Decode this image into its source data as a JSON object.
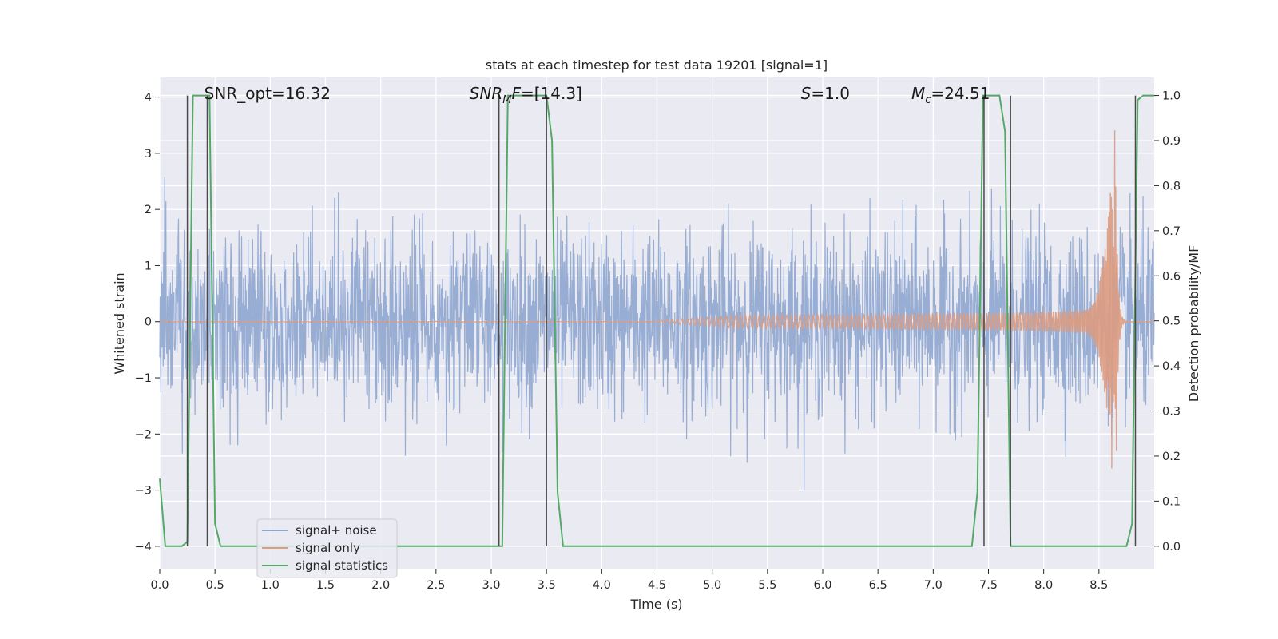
{
  "chart_data": {
    "type": "line",
    "title": "stats at each timestep for test data 19201 [signal=1]",
    "xlabel": "Time (s)",
    "ylabel_left": "Whitened strain",
    "ylabel_right": "Detection probability/MF",
    "xlim": [
      0.0,
      9.0
    ],
    "ylim_left": [
      -4.4,
      4.35
    ],
    "ylim_right": [
      -0.05,
      1.04
    ],
    "x_ticks": [
      "0.0",
      "0.5",
      "1.0",
      "1.5",
      "2.0",
      "2.5",
      "3.0",
      "3.5",
      "4.0",
      "4.5",
      "5.0",
      "5.5",
      "6.0",
      "6.5",
      "7.0",
      "7.5",
      "8.0",
      "8.5"
    ],
    "x_tick_values": [
      0.0,
      0.5,
      1.0,
      1.5,
      2.0,
      2.5,
      3.0,
      3.5,
      4.0,
      4.5,
      5.0,
      5.5,
      6.0,
      6.5,
      7.0,
      7.5,
      8.0,
      8.5
    ],
    "y_left_ticks": [
      "4",
      "3",
      "2",
      "1",
      "0",
      "−1",
      "−2",
      "−3",
      "−4"
    ],
    "y_left_tick_values": [
      4,
      3,
      2,
      1,
      0,
      -1,
      -2,
      -3,
      -4
    ],
    "y_right_ticks": [
      "1.0",
      "0.9",
      "0.8",
      "0.7",
      "0.6",
      "0.5",
      "0.4",
      "0.3",
      "0.2",
      "0.1",
      "0.0"
    ],
    "y_right_tick_values": [
      1.0,
      0.9,
      0.8,
      0.7,
      0.6,
      0.5,
      0.4,
      0.3,
      0.2,
      0.1,
      0.0
    ],
    "grid": true,
    "legend_position": "lower-left",
    "annotations": [
      {
        "html": "SNR_opt=16.32",
        "x": 0.2
      },
      {
        "html": "<tspan font-style='italic'>SNR</tspan><tspan font-style='italic' font-size='13' dy='5'>M</tspan><tspan font-style='italic' dy='-5'>F</tspan>=[14.3]",
        "x": 2.6
      },
      {
        "html": "<tspan font-style='italic'>S</tspan>=1.0",
        "x": 5.6
      },
      {
        "html": "<tspan font-style='italic'>M</tspan><tspan font-style='italic' font-size='13' dy='5'>c</tspan><tspan dy='-5'>=24.51</tspan>",
        "x": 6.6
      }
    ],
    "series": [
      {
        "name": "signal+ noise",
        "color": "#8fa6cf",
        "axis": "left",
        "kind": "noise",
        "spread": 0.8,
        "max_spikes": 3.7,
        "duration": 9.0
      },
      {
        "name": "signal only",
        "color": "#dd9b7f",
        "axis": "left",
        "kind": "chirp",
        "merger_time": 8.65,
        "peak": 3.7
      },
      {
        "name": "signal statistics",
        "color": "#55a868",
        "axis": "right",
        "x": [
          0.0,
          0.05,
          0.1,
          0.15,
          0.2,
          0.25,
          0.3,
          0.35,
          0.4,
          0.45,
          0.5,
          0.55,
          0.6,
          0.65,
          0.7,
          0.8,
          0.9,
          1.0,
          1.2,
          1.5,
          2.0,
          2.5,
          3.0,
          3.05,
          3.1,
          3.15,
          3.2,
          3.3,
          3.4,
          3.45,
          3.5,
          3.55,
          3.6,
          3.65,
          3.7,
          4.0,
          5.0,
          6.0,
          7.0,
          7.3,
          7.35,
          7.4,
          7.45,
          7.5,
          7.55,
          7.6,
          7.65,
          7.7,
          7.75,
          7.8,
          8.0,
          8.5,
          8.7,
          8.75,
          8.8,
          8.85,
          8.9,
          8.95,
          9.0
        ],
        "y": [
          0.15,
          0.0,
          0.0,
          0.0,
          0.0,
          0.01,
          1.0,
          1.0,
          1.0,
          1.0,
          0.05,
          0.0,
          0.0,
          0.0,
          0.0,
          0.0,
          0.0,
          0.0,
          0.0,
          0.0,
          0.0,
          0.0,
          0.0,
          0.0,
          0.0,
          1.0,
          1.0,
          1.0,
          1.0,
          1.0,
          1.0,
          0.9,
          0.12,
          0.0,
          0.0,
          0.0,
          0.0,
          0.0,
          0.0,
          0.0,
          0.0,
          0.12,
          1.0,
          1.0,
          1.0,
          1.0,
          0.92,
          0.0,
          0.0,
          0.0,
          0.0,
          0.0,
          0.0,
          0.0,
          0.05,
          0.99,
          1.0,
          1.0,
          1.0
        ]
      }
    ],
    "vlines": [
      0.25,
      0.43,
      3.07,
      3.5,
      7.46,
      7.7,
      8.83
    ],
    "vline_color": "#4a4a4a"
  }
}
